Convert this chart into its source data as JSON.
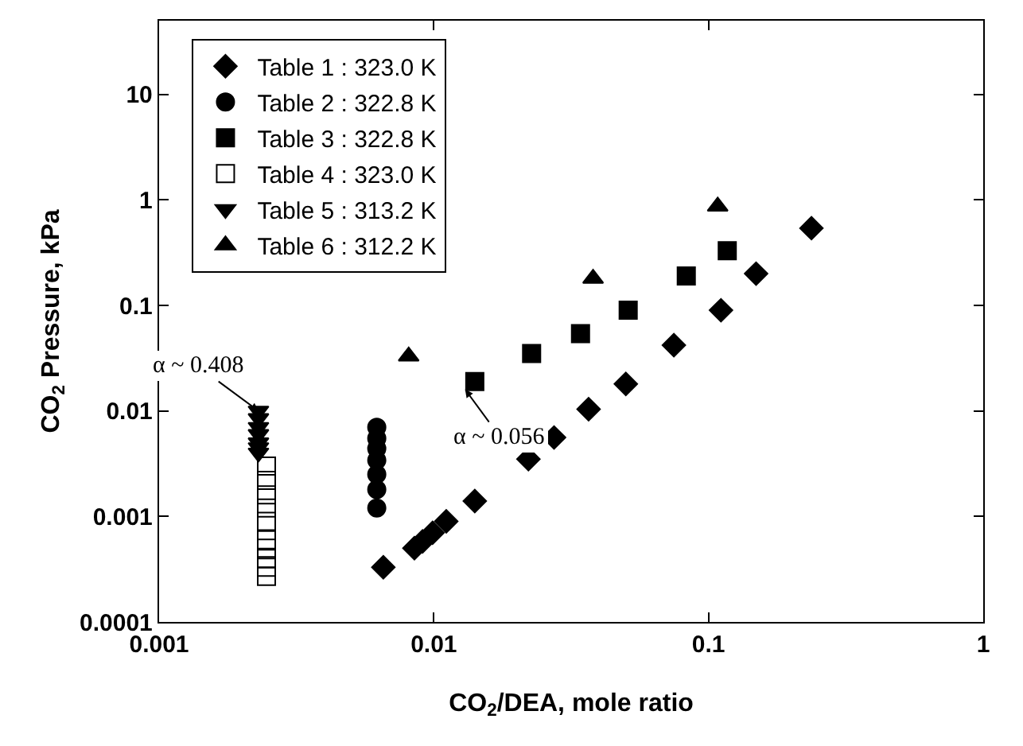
{
  "chart_data": {
    "type": "scatter",
    "xlabel": "CO$_{2}$/DEA, mole ratio",
    "ylabel": "CO$_{2}$ Pressure, kPa",
    "log": "xy",
    "grid": false,
    "legend": "top left",
    "xlim": [
      0.001,
      1
    ],
    "xticks": [
      0.001,
      0.01,
      0.1,
      1
    ],
    "ylim": [
      0.0001,
      50
    ],
    "yticks": [
      0.0001,
      0.001,
      0.01,
      0.1,
      1,
      10
    ],
    "series": [
      {
        "name": "Table 1 : 323.0 K",
        "color": "#000000",
        "marker": "diamond",
        "x": [
          0.00655,
          0.0085,
          0.0091,
          0.0099,
          0.0111,
          0.0141,
          0.0221,
          0.0274,
          0.0366,
          0.05,
          0.0748,
          0.111,
          0.149,
          0.237
        ],
        "values": [
          0.00033,
          0.0005,
          0.00058,
          0.0007,
          0.0009,
          0.0014,
          0.0035,
          0.0056,
          0.0104,
          0.018,
          0.042,
          0.09,
          0.2,
          0.54
        ]
      },
      {
        "name": "Table 2 : 322.8 K",
        "color": "#000000",
        "marker": "circle",
        "x": [
          0.0062,
          0.0062,
          0.0062,
          0.0062,
          0.0062,
          0.0062,
          0.0062
        ],
        "values": [
          0.007,
          0.0055,
          0.0044,
          0.0034,
          0.0025,
          0.0018,
          0.0012
        ]
      },
      {
        "name": "Table 3 : 322.8 K",
        "color": "#000000",
        "marker": "square",
        "x": [
          0.0141,
          0.0227,
          0.0342,
          0.051,
          0.083,
          0.117
        ],
        "values": [
          0.019,
          0.035,
          0.054,
          0.09,
          0.19,
          0.33
        ]
      },
      {
        "name": "Table 4 : 323.0 K",
        "color": "#000000",
        "marker": "square-open",
        "x": [
          0.00246,
          0.00246,
          0.00246,
          0.00246,
          0.00246,
          0.00246,
          0.00246,
          0.00246,
          0.00246,
          0.00246
        ],
        "values": [
          0.003,
          0.0022,
          0.0016,
          0.0012,
          0.0009,
          0.0006,
          0.0005,
          0.0004,
          0.00033,
          0.00027
        ]
      },
      {
        "name": "Table 5 : 313.2 K",
        "color": "#000000",
        "marker": "triangle-down",
        "x": [
          0.0023,
          0.0023,
          0.0023,
          0.0023,
          0.0023,
          0.0023,
          0.0023
        ],
        "values": [
          0.01,
          0.0085,
          0.007,
          0.006,
          0.005,
          0.0045,
          0.004
        ]
      },
      {
        "name": "Table 6 : 312.2 K",
        "color": "#000000",
        "marker": "triangle",
        "x": [
          0.0081,
          0.038,
          0.108
        ],
        "values": [
          0.033,
          0.18,
          0.87
        ]
      }
    ],
    "annotations": [
      {
        "text": "α ~ 0.408",
        "x": 0.0023,
        "y": 0.01
      },
      {
        "text": "α ~ 0.056",
        "x": 0.013,
        "y": 0.016
      }
    ]
  }
}
